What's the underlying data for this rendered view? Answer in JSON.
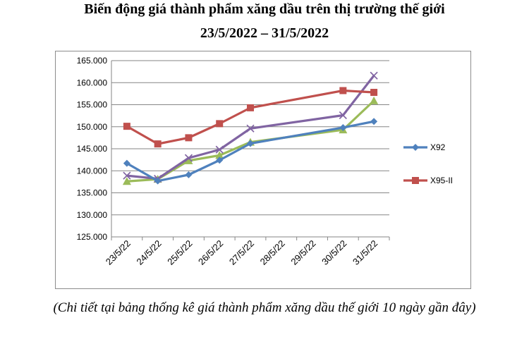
{
  "title": "Biến động giá thành phẩm xăng dầu trên thị trường thế giới",
  "subtitle": "23/5/2022 – 31/5/2022",
  "caption": "(Chi tiết tại bảng thống kê giá thành phẩm xăng dầu thế giới 10 ngày gần đây)",
  "chart_data": {
    "type": "line",
    "categories": [
      "23/5/22",
      "24/5/22",
      "25/5/22",
      "26/5/22",
      "27/5/22",
      "28/5/22",
      "29/5/22",
      "30/5/22",
      "31/5/22"
    ],
    "y_ticks": [
      "125.000",
      "130.000",
      "135.000",
      "140.000",
      "145.000",
      "150.000",
      "155.000",
      "160.000",
      "165.000"
    ],
    "ylim": [
      125000,
      165000
    ],
    "grid": true,
    "legend_position": "right",
    "series": [
      {
        "name": "X92",
        "color": "#4f81bd",
        "marker": "diamond",
        "values": [
          141700,
          137700,
          139100,
          142400,
          146200,
          null,
          null,
          149800,
          151200
        ]
      },
      {
        "name": "X95-II",
        "color": "#c0504d",
        "marker": "square",
        "values": [
          150100,
          146100,
          147500,
          150700,
          154300,
          null,
          null,
          158200,
          157800
        ]
      },
      {
        "color": "#9bbb59",
        "marker": "triangle",
        "values": [
          137600,
          138100,
          142300,
          143500,
          146500,
          null,
          null,
          149300,
          155900
        ]
      },
      {
        "color": "#8064a2",
        "marker": "x",
        "values": [
          138900,
          138200,
          142900,
          144800,
          149600,
          null,
          null,
          152600,
          161600
        ]
      }
    ]
  }
}
